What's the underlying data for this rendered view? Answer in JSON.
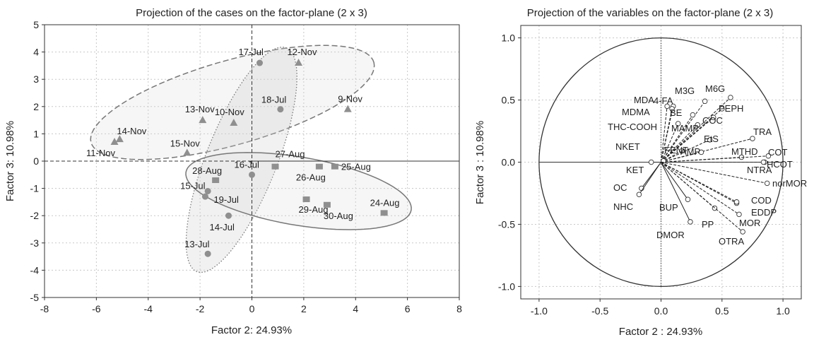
{
  "chart_data": [
    {
      "type": "scatter",
      "title": "Projection of the cases on the factor-plane (2 x 3)",
      "xlabel": "Factor 2: 24.93%",
      "ylabel": "Factor 3: 10.98%",
      "xlim": [
        -8,
        8
      ],
      "ylim": [
        -5,
        5
      ],
      "xticks": [
        -8,
        -6,
        -4,
        -2,
        0,
        2,
        4,
        6,
        8
      ],
      "yticks": [
        -5,
        -4,
        -3,
        -2,
        -1,
        0,
        1,
        2,
        3,
        4,
        5
      ],
      "grid": true,
      "series": [
        {
          "marker": "triangle",
          "points": [
            {
              "label": "14-Nov",
              "x": -5.1,
              "y": 0.8
            },
            {
              "label": "11-Nov",
              "x": -5.3,
              "y": 0.7
            },
            {
              "label": "13-Nov",
              "x": -1.9,
              "y": 1.5
            },
            {
              "label": "10-Nov",
              "x": -0.7,
              "y": 1.4
            },
            {
              "label": "15-Nov",
              "x": -2.5,
              "y": 0.3
            },
            {
              "label": "12-Nov",
              "x": 1.8,
              "y": 3.6
            },
            {
              "label": "9-Nov",
              "x": 3.7,
              "y": 1.9
            }
          ]
        },
        {
          "marker": "circle",
          "points": [
            {
              "label": "17-Jul",
              "x": 0.3,
              "y": 3.6
            },
            {
              "label": "18-Jul",
              "x": 1.1,
              "y": 1.9
            },
            {
              "label": "16-Jul",
              "x": 0.0,
              "y": -0.5
            },
            {
              "label": "15-Jul",
              "x": -1.7,
              "y": -1.1
            },
            {
              "label": "19-Jul",
              "x": -1.8,
              "y": -1.3
            },
            {
              "label": "14-Jul",
              "x": -0.9,
              "y": -2.0
            },
            {
              "label": "13-Jul",
              "x": -1.7,
              "y": -3.4
            }
          ]
        },
        {
          "marker": "square",
          "points": [
            {
              "label": "27-Aug",
              "x": 0.9,
              "y": -0.2
            },
            {
              "label": "28-Aug",
              "x": -1.4,
              "y": -0.7
            },
            {
              "label": "26-Aug",
              "x": 2.6,
              "y": -0.2
            },
            {
              "label": "25-Aug",
              "x": 3.2,
              "y": -0.2
            },
            {
              "label": "29-Aug",
              "x": 2.1,
              "y": -1.4
            },
            {
              "label": "30-Aug",
              "x": 2.9,
              "y": -1.6
            },
            {
              "label": "24-Aug",
              "x": 5.1,
              "y": -1.9
            }
          ]
        }
      ],
      "ellipses": [
        {
          "group": "Nov",
          "style": "dashed",
          "cx": -0.75,
          "cy": 2.15,
          "rx": 5.65,
          "ry": 1.55,
          "angle_deg": 15
        },
        {
          "group": "Jul",
          "style": "dotted",
          "cx": -0.4,
          "cy": 0.05,
          "rx": 4.45,
          "ry": 1.35,
          "angle_deg": 67
        },
        {
          "group": "Aug",
          "style": "solid",
          "cx": 1.8,
          "cy": -1.1,
          "rx": 4.4,
          "ry": 1.25,
          "angle_deg": -9
        }
      ]
    },
    {
      "type": "scatter",
      "title": "Projection of the variables on the factor-plane (2 x 3)",
      "xlabel": "Factor 2 : 24.93%",
      "ylabel": "Factor 3 : 10.98%",
      "xlim": [
        -1.15,
        1.15
      ],
      "ylim": [
        -1.1,
        1.1
      ],
      "xticks": [
        "-1.0",
        "-0.5",
        "0.0",
        "0.5",
        "1.0"
      ],
      "yticks": [
        "-1.0",
        "-0.5",
        "0.0",
        "0.5",
        "1.0"
      ],
      "grid": true,
      "unit_circle": true,
      "vectors": [
        {
          "label": "M6G",
          "x": 0.57,
          "y": 0.52
        },
        {
          "label": "M3G",
          "x": 0.36,
          "y": 0.49
        },
        {
          "label": "4-FA",
          "x": 0.1,
          "y": 0.45
        },
        {
          "label": "MDA",
          "x": 0.05,
          "y": 0.45
        },
        {
          "label": "MDMA",
          "x": 0.09,
          "y": 0.43
        },
        {
          "label": "BE",
          "x": 0.26,
          "y": 0.38
        },
        {
          "label": "PEPH",
          "x": 0.5,
          "y": 0.43
        },
        {
          "label": "COC",
          "x": 0.43,
          "y": 0.36
        },
        {
          "label": "MAMP",
          "x": 0.3,
          "y": 0.3
        },
        {
          "label": "THC-COOH",
          "x": 0.14,
          "y": 0.31
        },
        {
          "label": "EtS",
          "x": 0.4,
          "y": 0.18
        },
        {
          "label": "TRA",
          "x": 0.75,
          "y": 0.19
        },
        {
          "label": "FENT",
          "x": 0.17,
          "y": 0.09
        },
        {
          "label": "AMP",
          "x": 0.33,
          "y": 0.08
        },
        {
          "label": "MTHD",
          "x": 0.66,
          "y": 0.04
        },
        {
          "label": "COT",
          "x": 0.88,
          "y": 0.05
        },
        {
          "label": "NKET",
          "x": 0.02,
          "y": 0.01
        },
        {
          "label": "NTRA",
          "x": 0.85,
          "y": 0.0
        },
        {
          "label": "HCOT",
          "x": 0.84,
          "y": 0.0
        },
        {
          "label": "KET",
          "x": -0.08,
          "y": 0.0
        },
        {
          "label": "norMOR",
          "x": 0.87,
          "y": -0.17
        },
        {
          "label": "OC",
          "x": -0.16,
          "y": -0.21
        },
        {
          "label": "COD",
          "x": 0.62,
          "y": -0.33
        },
        {
          "label": "NHC",
          "x": -0.18,
          "y": -0.26
        },
        {
          "label": "EDDP",
          "x": 0.62,
          "y": -0.32
        },
        {
          "label": "BUP",
          "x": 0.22,
          "y": -0.3
        },
        {
          "label": "PP",
          "x": 0.44,
          "y": -0.37
        },
        {
          "label": "MOR",
          "x": 0.64,
          "y": -0.42
        },
        {
          "label": "DMOR",
          "x": 0.24,
          "y": -0.48
        },
        {
          "label": "OTRA",
          "x": 0.67,
          "y": -0.56
        }
      ]
    }
  ]
}
